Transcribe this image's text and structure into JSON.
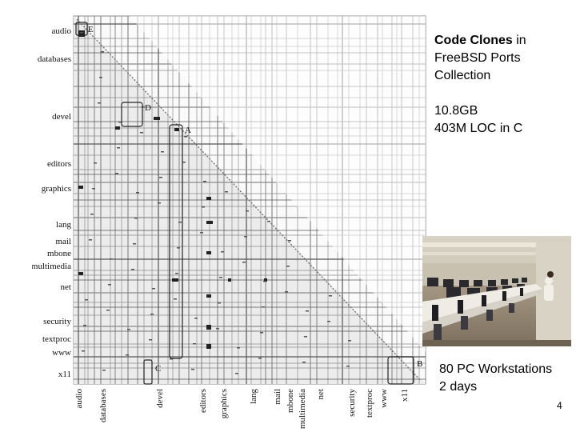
{
  "title": {
    "bold": "Code Clones",
    "rest": " in FreeBSD Ports Collection"
  },
  "stats": {
    "size": "10.8GB",
    "loc": "403M LOC in C"
  },
  "photo": {
    "caption_line1": "80 PC Workstations",
    "caption_line2": "2 days"
  },
  "page_number": "4",
  "scatter": {
    "categories": [
      "audio",
      "databases",
      "devel",
      "editors",
      "graphics",
      "lang",
      "mail",
      "mbone",
      "multimedia",
      "net",
      "security",
      "textproc",
      "www",
      "x11"
    ],
    "marks": [
      "E",
      "D",
      "A",
      "C",
      "B"
    ]
  }
}
